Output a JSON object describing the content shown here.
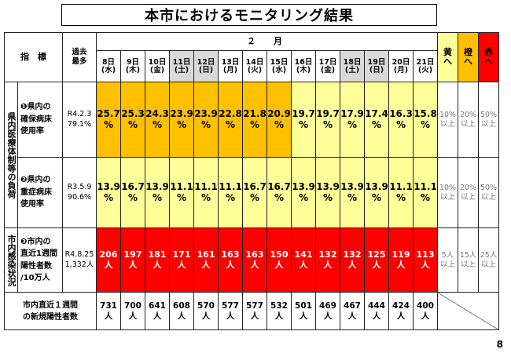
{
  "title": "本市におけるモニタリング結果",
  "header": {
    "indicator_label": "指　標",
    "past_max_label": [
      "過去",
      "最多"
    ],
    "month_label": "２　月",
    "dates": [
      {
        "day": "8日",
        "weekday": "(水)",
        "holiday": false
      },
      {
        "day": "9日",
        "weekday": "(木)",
        "holiday": false
      },
      {
        "day": "10日",
        "weekday": "(金)",
        "holiday": false
      },
      {
        "day": "11日",
        "weekday": "(土)",
        "holiday": true
      },
      {
        "day": "12日",
        "weekday": "(日)",
        "holiday": true
      },
      {
        "day": "13日",
        "weekday": "(月)",
        "holiday": false
      },
      {
        "day": "14日",
        "weekday": "(火)",
        "holiday": false
      },
      {
        "day": "15日",
        "weekday": "(水)",
        "holiday": false
      },
      {
        "day": "16日",
        "weekday": "(木)",
        "holiday": false
      },
      {
        "day": "17日",
        "weekday": "(金)",
        "holiday": false
      },
      {
        "day": "18日",
        "weekday": "(土)",
        "holiday": true
      },
      {
        "day": "19日",
        "weekday": "(日)",
        "holiday": true
      },
      {
        "day": "20日",
        "weekday": "(月)",
        "holiday": false
      },
      {
        "day": "21日",
        "weekday": "(火)",
        "holiday": false
      }
    ],
    "alert_levels": [
      {
        "line1": "黄",
        "line2": "へ",
        "color": "#ffff99"
      },
      {
        "line1": "橙",
        "line2": "へ",
        "color": "#ffc000"
      },
      {
        "line1": "赤",
        "line2": "へ",
        "color": "#ff0000"
      }
    ]
  },
  "categories": {
    "medical": "県内医療体制等の負荷",
    "infection": "市内感染状況"
  },
  "rows": [
    {
      "label": [
        "❶県内の",
        "確保病床",
        "使用率"
      ],
      "past_max": [
        "R4.2.3",
        "79.1%"
      ],
      "values": [
        {
          "main": "25.7",
          "unit": "%",
          "level": "orange"
        },
        {
          "main": "25.3",
          "unit": "%",
          "level": "orange"
        },
        {
          "main": "24.3",
          "unit": "%",
          "level": "orange"
        },
        {
          "main": "23.9",
          "unit": "%",
          "level": "orange"
        },
        {
          "main": "23.9",
          "unit": "%",
          "level": "orange"
        },
        {
          "main": "22.8",
          "unit": "%",
          "level": "orange"
        },
        {
          "main": "21.8",
          "unit": "%",
          "level": "orange"
        },
        {
          "main": "20.9",
          "unit": "%",
          "level": "orange"
        },
        {
          "main": "19.7",
          "unit": "%",
          "level": "yellow"
        },
        {
          "main": "19.7",
          "unit": "%",
          "level": "yellow"
        },
        {
          "main": "17.9",
          "unit": "%",
          "level": "yellow"
        },
        {
          "main": "17.4",
          "unit": "%",
          "level": "yellow"
        },
        {
          "main": "16.3",
          "unit": "%",
          "level": "yellow"
        },
        {
          "main": "15.8",
          "unit": "%",
          "level": "yellow"
        }
      ],
      "thresholds": [
        [
          "10%",
          "以上"
        ],
        [
          "20%",
          "以上"
        ],
        [
          "50%",
          "以上"
        ]
      ]
    },
    {
      "label": [
        "❷県内の",
        "重症病床",
        "使用率"
      ],
      "past_max": [
        "R3.5.9",
        "90.6%"
      ],
      "values": [
        {
          "main": "13.9",
          "unit": "%",
          "level": "yellow"
        },
        {
          "main": "16.7",
          "unit": "%",
          "level": "yellow"
        },
        {
          "main": "13.9",
          "unit": "%",
          "level": "yellow"
        },
        {
          "main": "11.1",
          "unit": "%",
          "level": "yellow"
        },
        {
          "main": "11.1",
          "unit": "%",
          "level": "yellow"
        },
        {
          "main": "11.1",
          "unit": "%",
          "level": "yellow"
        },
        {
          "main": "16.7",
          "unit": "%",
          "level": "yellow"
        },
        {
          "main": "16.7",
          "unit": "%",
          "level": "yellow"
        },
        {
          "main": "13.9",
          "unit": "%",
          "level": "yellow"
        },
        {
          "main": "13.9",
          "unit": "%",
          "level": "yellow"
        },
        {
          "main": "13.9",
          "unit": "%",
          "level": "yellow"
        },
        {
          "main": "13.9",
          "unit": "%",
          "level": "yellow"
        },
        {
          "main": "11.1",
          "unit": "%",
          "level": "yellow"
        },
        {
          "main": "11.1",
          "unit": "%",
          "level": "yellow"
        }
      ],
      "thresholds": [
        [
          "10%",
          "以上"
        ],
        [
          "20%",
          "以上"
        ],
        [
          "50%",
          "以上"
        ]
      ]
    },
    {
      "label": [
        "❸市内の",
        "直近1週間",
        "陽性者数",
        "/10万人"
      ],
      "past_max": [
        "R4.8.25",
        "1,332人"
      ],
      "values": [
        {
          "main": "206",
          "unit": "人",
          "level": "red"
        },
        {
          "main": "197",
          "unit": "人",
          "level": "red"
        },
        {
          "main": "181",
          "unit": "人",
          "level": "red"
        },
        {
          "main": "171",
          "unit": "人",
          "level": "red"
        },
        {
          "main": "161",
          "unit": "人",
          "level": "red"
        },
        {
          "main": "163",
          "unit": "人",
          "level": "red"
        },
        {
          "main": "163",
          "unit": "人",
          "level": "red"
        },
        {
          "main": "150",
          "unit": "人",
          "level": "red"
        },
        {
          "main": "141",
          "unit": "人",
          "level": "red"
        },
        {
          "main": "132",
          "unit": "人",
          "level": "red"
        },
        {
          "main": "132",
          "unit": "人",
          "level": "red"
        },
        {
          "main": "125",
          "unit": "人",
          "level": "red"
        },
        {
          "main": "119",
          "unit": "人",
          "level": "red"
        },
        {
          "main": "113",
          "unit": "人",
          "level": "red"
        }
      ],
      "thresholds": [
        [
          "5人",
          "以上"
        ],
        [
          "15人",
          "以上"
        ],
        [
          "25人",
          "以上"
        ]
      ]
    }
  ],
  "weekly_new": {
    "label": [
      "市内直近１週間",
      "の新規陽性者数"
    ],
    "values": [
      {
        "main": "731",
        "unit": "人"
      },
      {
        "main": "700",
        "unit": "人"
      },
      {
        "main": "641",
        "unit": "人"
      },
      {
        "main": "608",
        "unit": "人"
      },
      {
        "main": "570",
        "unit": "人"
      },
      {
        "main": "577",
        "unit": "人"
      },
      {
        "main": "577",
        "unit": "人"
      },
      {
        "main": "532",
        "unit": "人"
      },
      {
        "main": "501",
        "unit": "人"
      },
      {
        "main": "469",
        "unit": "人"
      },
      {
        "main": "467",
        "unit": "人"
      },
      {
        "main": "444",
        "unit": "人"
      },
      {
        "main": "424",
        "unit": "人"
      },
      {
        "main": "400",
        "unit": "人"
      }
    ]
  },
  "page_number": "8"
}
